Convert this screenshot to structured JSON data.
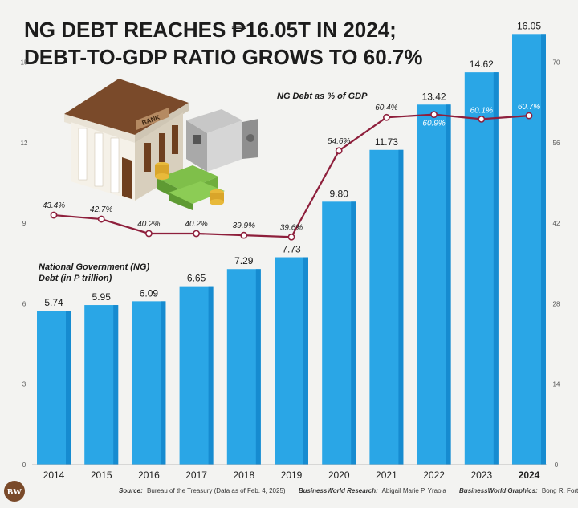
{
  "title_lines": [
    "NG DEBT REACHES ₱16.05T IN 2024;",
    "DEBT-TO-GDP RATIO GROWS TO 60.7%"
  ],
  "chart_data": {
    "type": "bar",
    "categories": [
      "2014",
      "2015",
      "2016",
      "2017",
      "2018",
      "2019",
      "2020",
      "2021",
      "2022",
      "2023",
      "2024"
    ],
    "highlight_category": "2024",
    "series": [
      {
        "name_lines": [
          "National Government (NG)",
          "Debt (in P trillion)"
        ],
        "type": "bar",
        "axis": "left",
        "values": [
          5.74,
          5.95,
          6.09,
          6.65,
          7.29,
          7.73,
          9.8,
          11.73,
          13.42,
          14.62,
          16.05
        ],
        "labels": [
          "5.74",
          "5.95",
          "6.09",
          "6.65",
          "7.29",
          "7.73",
          "9.80",
          "11.73",
          "13.42",
          "14.62",
          "16.05"
        ],
        "color": "#2aa6e6"
      },
      {
        "name": "NG Debt as % of GDP",
        "type": "line",
        "axis": "right",
        "values": [
          43.4,
          42.7,
          40.2,
          40.2,
          39.9,
          39.6,
          54.6,
          60.4,
          60.9,
          60.1,
          60.7
        ],
        "labels": [
          "43.4%",
          "42.7%",
          "40.2%",
          "40.2%",
          "39.9%",
          "39.6%",
          "54.6%",
          "60.4%",
          "60.9%",
          "60.1%",
          "60.7%"
        ],
        "color": "#8e1f3c"
      }
    ],
    "left_axis": {
      "min": 0,
      "max": 16,
      "ticks": [
        "0",
        "3",
        "6",
        "9",
        "12",
        "15"
      ],
      "tick_values": [
        0,
        3,
        6,
        9,
        12,
        15
      ]
    },
    "right_axis": {
      "min": 0,
      "max": 74.67,
      "ticks": [
        "0",
        "14",
        "28",
        "42",
        "56",
        "70"
      ],
      "tick_values": [
        0,
        14,
        28,
        42,
        56,
        70
      ]
    }
  },
  "footer": {
    "source_label": "Source:",
    "source_text": "Bureau of the Treasury (Data as of Feb. 4, 2025)",
    "research_label": "BusinessWorld Research:",
    "research_text": "Abigail Marie P. Yraola",
    "graphics_label": "BusinessWorld Graphics:",
    "graphics_text": "Bong R. Fortin"
  },
  "logo_text": "BW",
  "illustration": {
    "bank_sign": "BANK"
  },
  "colors": {
    "bar": "#2aa6e6",
    "bar_dark": "#168bd0",
    "line": "#8e1f3c",
    "background": "#f3f3f1"
  }
}
